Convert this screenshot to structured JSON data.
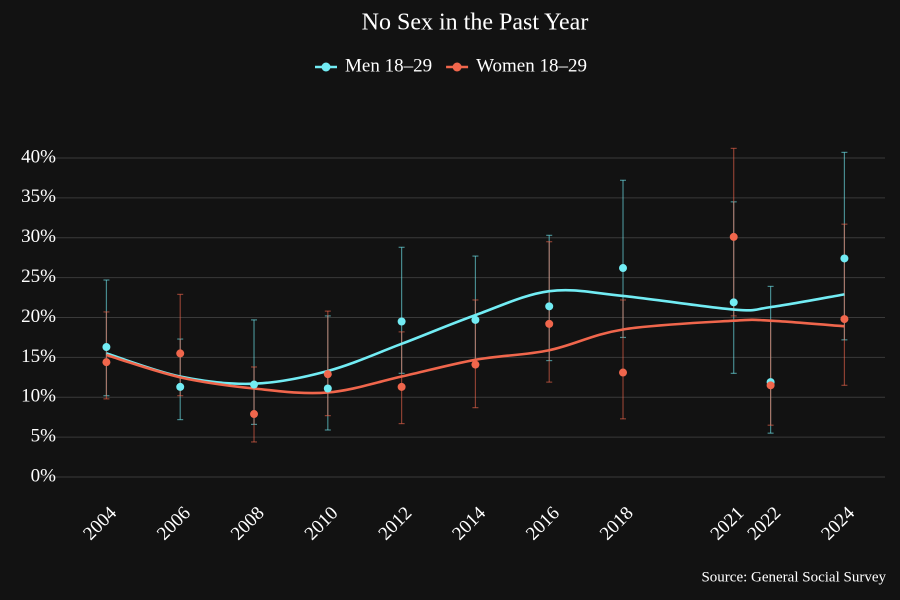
{
  "chart_data": {
    "type": "line",
    "title": "No Sex in the Past Year",
    "source": "Source: General Social Survey",
    "x": [
      2004,
      2006,
      2008,
      2010,
      2012,
      2014,
      2016,
      2018,
      2021,
      2022,
      2024
    ],
    "xlim": [
      2002.2,
      2025.1
    ],
    "xticks": [
      2004,
      2006,
      2008,
      2010,
      2012,
      2014,
      2016,
      2018,
      2021,
      2022,
      2024
    ],
    "ylim": [
      -2.5,
      42
    ],
    "yticks": [
      {
        "value": 0,
        "label": "0%"
      },
      {
        "value": 5,
        "label": "5%"
      },
      {
        "value": 10,
        "label": "10%"
      },
      {
        "value": 15,
        "label": "15%"
      },
      {
        "value": 20,
        "label": "20%"
      },
      {
        "value": 25,
        "label": "25%"
      },
      {
        "value": 30,
        "label": "30%"
      },
      {
        "value": 35,
        "label": "35%"
      },
      {
        "value": 40,
        "label": "40%"
      }
    ],
    "grid": true,
    "legend": "top",
    "series": [
      {
        "name": "Men 18–29",
        "color": "#72ecf4",
        "values": [
          16.3,
          11.3,
          11.6,
          11.1,
          19.5,
          19.7,
          21.4,
          26.2,
          21.9,
          11.9,
          27.4
        ],
        "lower": [
          10.2,
          7.2,
          6.6,
          5.9,
          13.0,
          13.8,
          14.6,
          17.5,
          13.0,
          5.5,
          17.2
        ],
        "upper": [
          24.7,
          17.3,
          19.7,
          20.2,
          28.8,
          27.7,
          30.3,
          37.2,
          34.5,
          23.9,
          40.7
        ],
        "trend": [
          15.5,
          12.6,
          11.7,
          13.3,
          16.7,
          20.3,
          23.3,
          22.7,
          21.0,
          21.3,
          22.9
        ]
      },
      {
        "name": "Women 18–29",
        "color": "#f0664c",
        "values": [
          14.4,
          15.5,
          7.9,
          12.9,
          11.3,
          14.1,
          19.2,
          13.1,
          30.1,
          11.5,
          19.8
        ],
        "lower": [
          9.8,
          10.2,
          4.4,
          7.7,
          6.7,
          8.7,
          11.9,
          7.3,
          20.2,
          6.5,
          11.5
        ],
        "upper": [
          20.7,
          22.9,
          13.8,
          20.8,
          18.2,
          22.2,
          29.5,
          22.2,
          41.2,
          19.6,
          31.7
        ],
        "trend": [
          15.3,
          12.5,
          11.1,
          10.6,
          12.6,
          14.7,
          15.9,
          18.5,
          19.6,
          19.6,
          18.9
        ]
      }
    ]
  }
}
